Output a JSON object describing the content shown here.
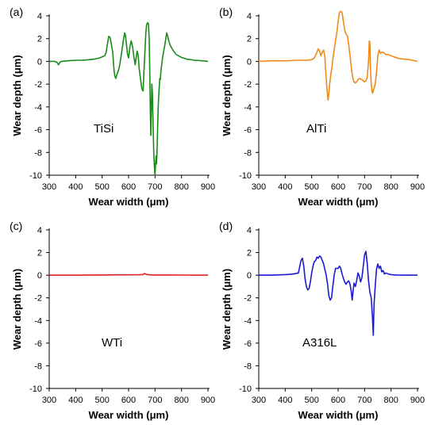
{
  "chart_data": [
    {
      "type": "line",
      "panel_label": "(a)",
      "sample_label": "TiSi",
      "xlabel": "Wear width (μm)",
      "ylabel": "Wear depth (μm)",
      "xlim": [
        300,
        900
      ],
      "ylim": [
        -10,
        4
      ],
      "xticks": [
        300,
        400,
        500,
        600,
        700,
        800,
        900
      ],
      "yticks": [
        4,
        2,
        0,
        -2,
        -4,
        -6,
        -8,
        -10
      ],
      "grid": false,
      "series": [
        {
          "color": "#1a8a1a",
          "x": [
            300,
            320,
            330,
            335,
            340,
            345,
            350,
            370,
            400,
            430,
            450,
            470,
            490,
            500,
            510,
            515,
            520,
            525,
            530,
            535,
            540,
            545,
            548,
            552,
            555,
            560,
            565,
            570,
            575,
            580,
            585,
            588,
            592,
            596,
            600,
            605,
            610,
            615,
            620,
            625,
            628,
            632,
            636,
            640,
            645,
            650,
            655,
            658,
            662,
            665,
            668,
            672,
            675,
            678,
            680,
            682,
            684,
            686,
            688,
            690,
            692,
            695,
            698,
            700,
            702,
            704,
            706,
            708,
            710,
            712,
            714,
            716,
            718,
            720,
            722,
            725,
            728,
            732,
            736,
            740,
            744,
            748,
            752,
            756,
            760,
            770,
            780,
            800,
            820,
            850,
            880,
            900
          ],
          "y": [
            0.0,
            0.0,
            -0.1,
            -0.3,
            -0.1,
            0.0,
            0.0,
            0.05,
            0.1,
            0.1,
            0.15,
            0.2,
            0.3,
            0.4,
            0.5,
            0.8,
            1.5,
            2.2,
            2.1,
            1.5,
            0.8,
            -0.8,
            -1.3,
            -1.5,
            -1.2,
            -0.9,
            -0.5,
            0.2,
            1.0,
            1.8,
            2.5,
            2.3,
            1.5,
            0.6,
            0.3,
            1.3,
            1.8,
            1.3,
            0.4,
            -0.3,
            0.2,
            0.9,
            0.6,
            -0.6,
            -1.5,
            -2.4,
            -2.6,
            -1.0,
            1.0,
            2.5,
            3.2,
            3.4,
            3.3,
            2.0,
            -1.0,
            -4.0,
            -6.5,
            -4.0,
            -2.0,
            -2.8,
            -5.0,
            -8.0,
            -9.5,
            -10.0,
            -9.0,
            -8.3,
            -9.0,
            -7.5,
            -5.5,
            -4.0,
            -3.0,
            -2.2,
            -1.5,
            -1.6,
            -0.9,
            -0.3,
            0.3,
            0.8,
            1.3,
            1.9,
            2.5,
            2.2,
            1.8,
            1.5,
            1.3,
            0.9,
            0.6,
            0.35,
            0.2,
            0.1,
            0.05,
            0.0
          ]
        }
      ]
    },
    {
      "type": "line",
      "panel_label": "(b)",
      "sample_label": "AlTi",
      "xlabel": "Wear width (μm)",
      "ylabel": "Wear depth (μm)",
      "xlim": [
        300,
        900
      ],
      "ylim": [
        -10,
        4
      ],
      "xticks": [
        300,
        400,
        500,
        600,
        700,
        800,
        900
      ],
      "yticks": [
        4,
        2,
        0,
        -2,
        -4,
        -6,
        -8,
        -10
      ],
      "grid": false,
      "series": [
        {
          "color": "#f08a1a",
          "x": [
            300,
            350,
            400,
            450,
            480,
            500,
            510,
            520,
            525,
            530,
            535,
            540,
            545,
            550,
            552,
            555,
            558,
            560,
            562,
            565,
            568,
            572,
            576,
            580,
            585,
            590,
            595,
            600,
            605,
            610,
            615,
            620,
            625,
            630,
            635,
            640,
            645,
            650,
            655,
            660,
            665,
            670,
            675,
            680,
            690,
            700,
            705,
            710,
            715,
            718,
            720,
            722,
            725,
            728,
            730,
            735,
            740,
            745,
            750,
            755,
            760,
            765,
            770,
            780,
            790,
            800,
            810,
            830,
            850,
            870,
            880,
            890,
            900
          ],
          "y": [
            0.0,
            0.05,
            0.05,
            0.1,
            0.1,
            0.15,
            0.3,
            0.8,
            1.1,
            0.9,
            0.5,
            0.8,
            1.0,
            0.4,
            -0.5,
            -1.5,
            -2.5,
            -3.0,
            -3.4,
            -2.8,
            -2.0,
            -1.2,
            -0.6,
            0.2,
            1.0,
            1.8,
            2.5,
            3.5,
            4.3,
            4.4,
            4.3,
            3.5,
            2.7,
            2.4,
            2.2,
            1.5,
            0.5,
            -0.6,
            -1.4,
            -1.8,
            -1.9,
            -1.8,
            -1.6,
            -1.5,
            -1.6,
            -1.8,
            -1.7,
            -1.4,
            0.0,
            1.8,
            1.6,
            -0.5,
            -2.0,
            -2.6,
            -2.8,
            -2.4,
            -2.0,
            -1.0,
            0.5,
            1.0,
            0.7,
            0.8,
            0.8,
            0.6,
            0.6,
            0.5,
            0.4,
            0.25,
            0.2,
            0.15,
            0.1,
            0.05,
            0.0
          ]
        }
      ]
    },
    {
      "type": "line",
      "panel_label": "(c)",
      "sample_label": "WTi",
      "xlabel": "Wear width (μm)",
      "ylabel": "Wear depth (μm)",
      "xlim": [
        300,
        900
      ],
      "ylim": [
        -10,
        4
      ],
      "xticks": [
        300,
        400,
        500,
        600,
        700,
        800,
        900
      ],
      "yticks": [
        4,
        2,
        0,
        -2,
        -4,
        -6,
        -8,
        -10
      ],
      "grid": false,
      "series": [
        {
          "color": "#e02020",
          "x": [
            300,
            400,
            500,
            550,
            600,
            640,
            655,
            660,
            665,
            670,
            680,
            700,
            750,
            800,
            850,
            900
          ],
          "y": [
            0.0,
            0.0,
            0.02,
            0.03,
            0.03,
            0.04,
            0.06,
            0.15,
            0.1,
            0.05,
            0.03,
            0.02,
            0.02,
            0.01,
            0.0,
            0.0
          ]
        }
      ]
    },
    {
      "type": "line",
      "panel_label": "(d)",
      "sample_label": "A316L",
      "xlabel": "Wear width (μm)",
      "ylabel": "Wear depth (μm)",
      "xlim": [
        300,
        900
      ],
      "ylim": [
        -10,
        4
      ],
      "xticks": [
        300,
        400,
        500,
        600,
        700,
        800,
        900
      ],
      "yticks": [
        4,
        2,
        0,
        -2,
        -4,
        -6,
        -8,
        -10
      ],
      "grid": false,
      "series": [
        {
          "color": "#1a1ad8",
          "x": [
            300,
            350,
            400,
            430,
            450,
            455,
            460,
            465,
            470,
            475,
            480,
            485,
            490,
            495,
            500,
            505,
            510,
            515,
            520,
            525,
            530,
            535,
            540,
            545,
            550,
            555,
            560,
            565,
            570,
            575,
            580,
            585,
            590,
            595,
            600,
            605,
            610,
            615,
            620,
            625,
            630,
            635,
            640,
            645,
            650,
            653,
            656,
            660,
            665,
            670,
            675,
            680,
            685,
            690,
            695,
            700,
            705,
            710,
            715,
            720,
            725,
            730,
            733,
            736,
            740,
            745,
            750,
            755,
            760,
            765,
            770,
            775,
            780,
            790,
            800,
            820,
            850,
            900
          ],
          "y": [
            0.0,
            0.0,
            0.05,
            0.1,
            0.2,
            0.8,
            1.3,
            1.5,
            0.8,
            -0.3,
            -1.0,
            -1.3,
            -1.2,
            -0.6,
            0.2,
            0.8,
            1.2,
            1.3,
            1.6,
            1.5,
            1.7,
            1.6,
            1.3,
            1.0,
            0.5,
            0.0,
            -0.8,
            -1.8,
            -2.2,
            -2.0,
            -1.0,
            0.0,
            0.6,
            0.6,
            0.6,
            0.8,
            0.6,
            0.1,
            -0.3,
            -0.6,
            -0.8,
            -0.6,
            -0.5,
            -0.8,
            -1.5,
            -2.2,
            -1.5,
            -0.7,
            -1.0,
            -0.5,
            0.2,
            -0.1,
            -0.6,
            -0.2,
            0.8,
            1.8,
            2.1,
            1.0,
            -0.5,
            -1.5,
            -2.0,
            -3.8,
            -5.3,
            -2.5,
            -1.0,
            0.5,
            1.0,
            0.6,
            0.8,
            0.3,
            0.4,
            0.1,
            0.2,
            0.1,
            0.05,
            0.02,
            0.0,
            0.0
          ]
        }
      ]
    }
  ]
}
